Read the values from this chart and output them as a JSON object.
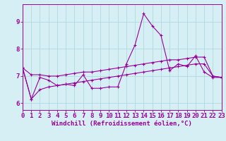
{
  "xlabel": "Windchill (Refroidissement éolien,°C)",
  "xlim": [
    0,
    23
  ],
  "ylim": [
    5.75,
    9.65
  ],
  "xticks": [
    0,
    1,
    2,
    3,
    4,
    5,
    6,
    7,
    8,
    9,
    10,
    11,
    12,
    13,
    14,
    15,
    16,
    17,
    18,
    19,
    20,
    21,
    22,
    23
  ],
  "yticks": [
    6,
    7,
    8,
    9
  ],
  "bg_color": "#d5eff5",
  "line_color": "#990099",
  "grid_color": "#b0d8dc",
  "line1_y": [
    7.3,
    6.15,
    6.95,
    6.85,
    6.65,
    6.7,
    6.65,
    7.05,
    6.55,
    6.55,
    6.6,
    6.6,
    7.45,
    8.15,
    9.3,
    8.85,
    8.5,
    7.2,
    7.45,
    7.35,
    7.75,
    7.15,
    6.95,
    6.95
  ],
  "line2_y": [
    7.3,
    7.05,
    7.05,
    7.0,
    7.0,
    7.05,
    7.1,
    7.15,
    7.15,
    7.2,
    7.25,
    7.3,
    7.35,
    7.4,
    7.45,
    7.5,
    7.55,
    7.6,
    7.6,
    7.65,
    7.7,
    7.7,
    7.0,
    6.95
  ],
  "line3_y": [
    7.3,
    6.15,
    6.5,
    6.6,
    6.65,
    6.7,
    6.75,
    6.8,
    6.85,
    6.9,
    6.95,
    7.0,
    7.05,
    7.1,
    7.15,
    7.2,
    7.25,
    7.3,
    7.35,
    7.4,
    7.45,
    7.45,
    7.0,
    6.95
  ],
  "tick_fontsize": 6.5,
  "xlabel_fontsize": 6.5,
  "marker_size": 3.0,
  "line_width": 0.8
}
